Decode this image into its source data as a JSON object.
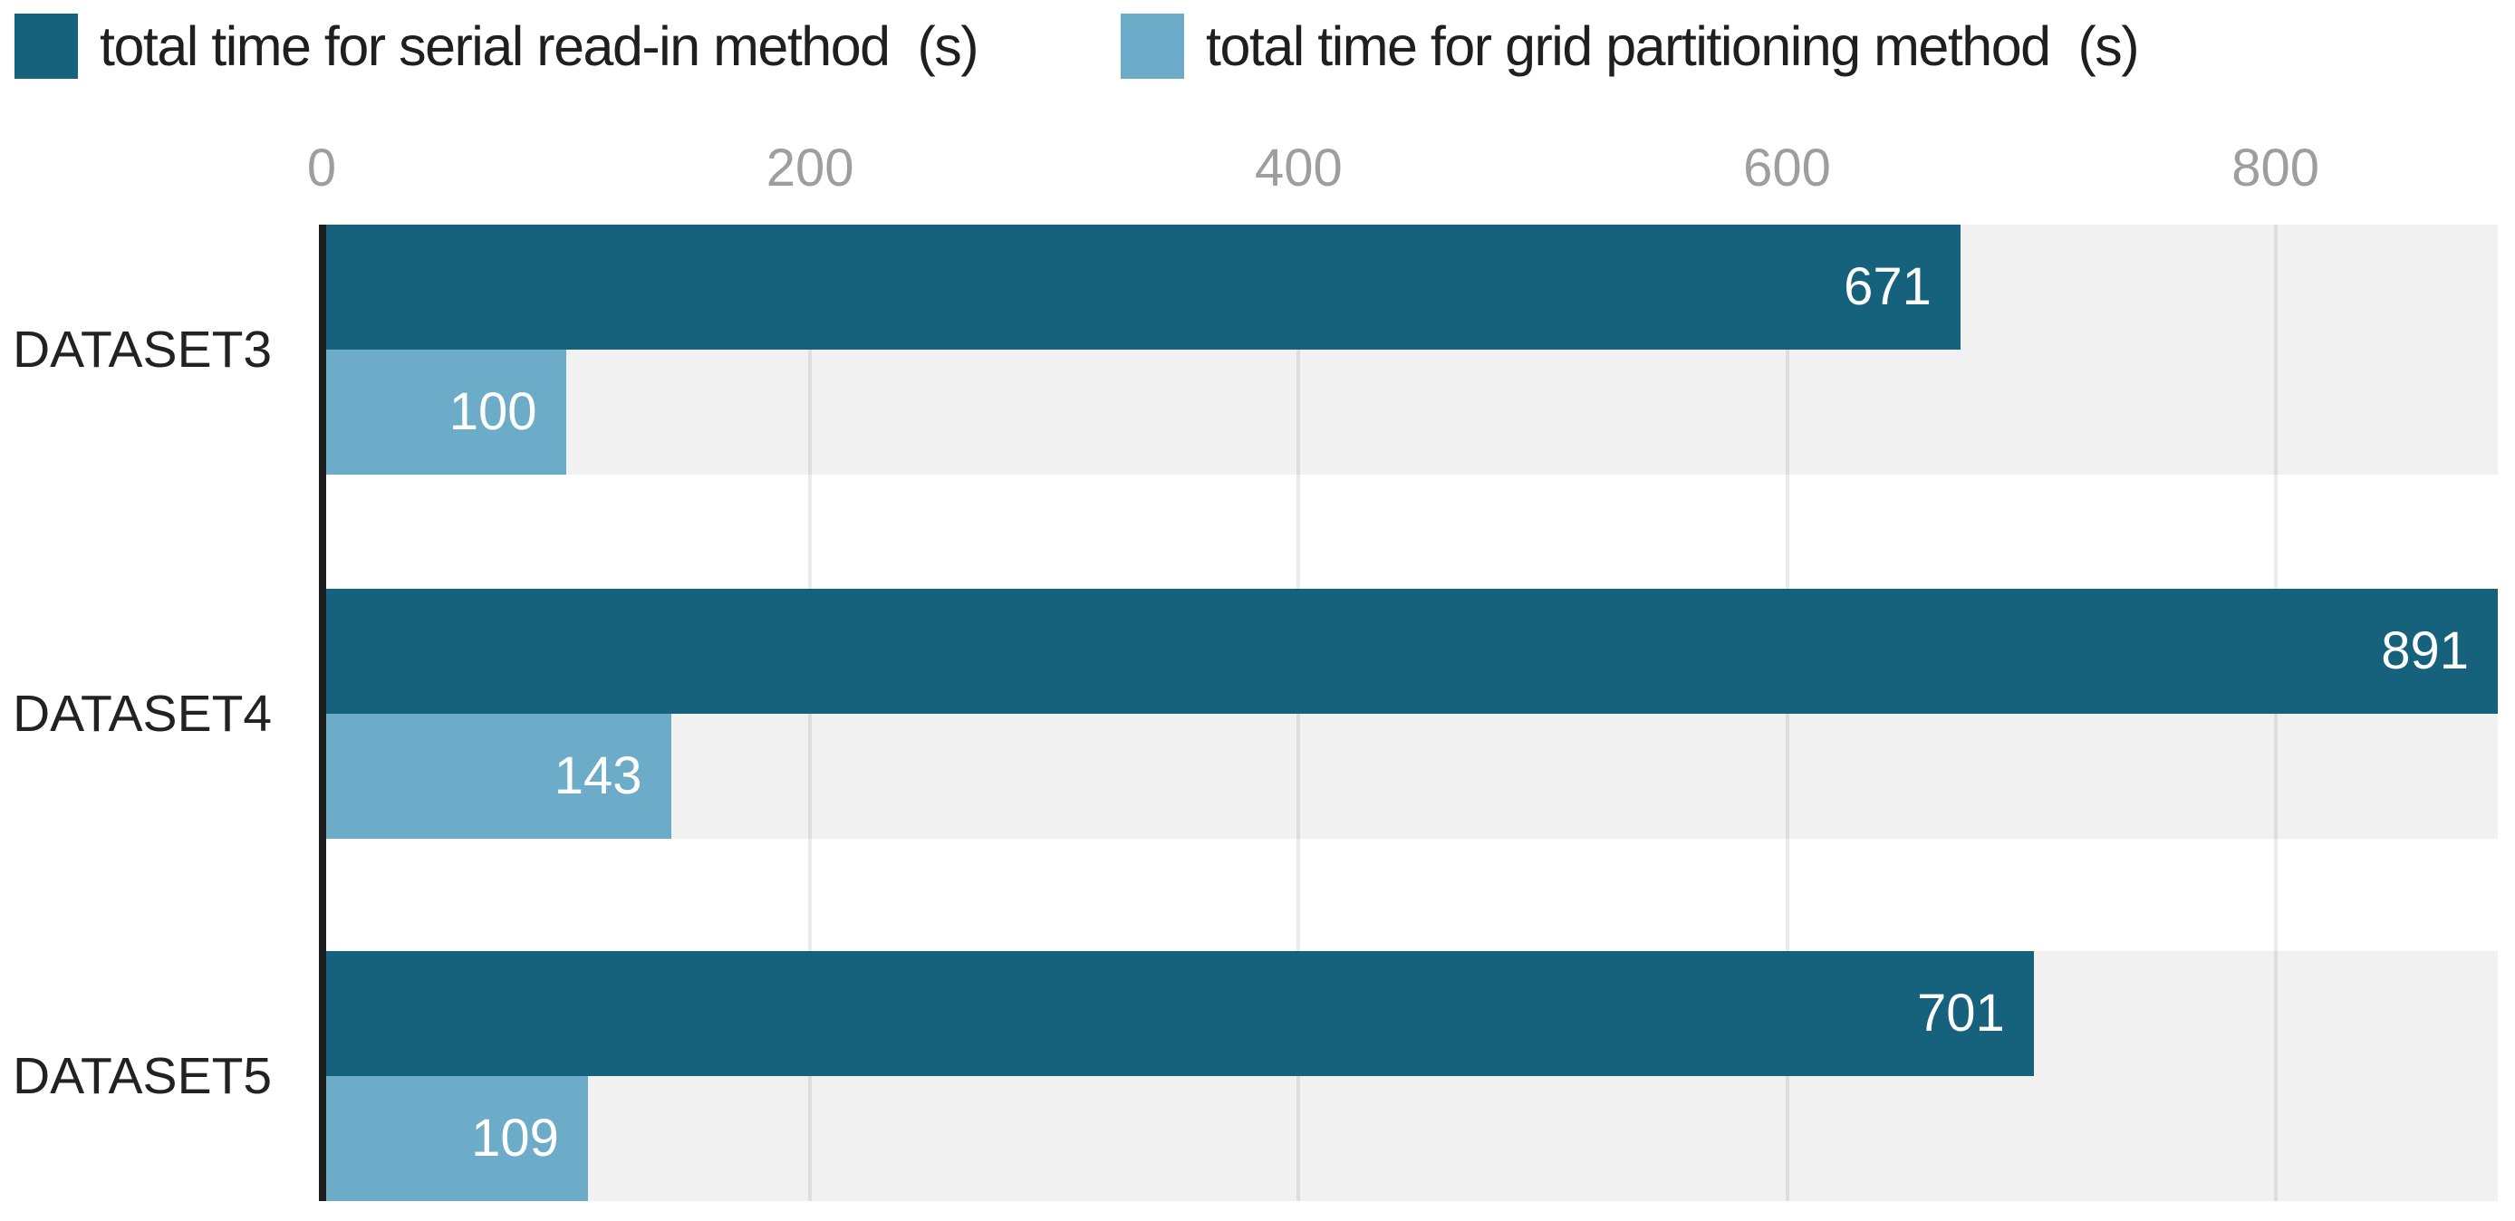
{
  "chart_data": {
    "type": "bar",
    "orientation": "horizontal",
    "title": "",
    "categories": [
      "DATASET3",
      "DATASET4",
      "DATASET5"
    ],
    "series": [
      {
        "name": "total time for serial read-in method  (s)",
        "color": "#16617b",
        "values": [
          671,
          891,
          701
        ]
      },
      {
        "name": "total time for grid partitioning method  (s)",
        "color": "#6dacc8",
        "values": [
          100,
          143,
          109
        ]
      }
    ],
    "xticks": [
      0,
      200,
      400,
      600,
      800
    ],
    "xtick_labels": [
      "0",
      "200",
      "400",
      "600",
      "800"
    ],
    "xlim": [
      0,
      891
    ],
    "xlabel": "",
    "ylabel": "",
    "grid": true,
    "legend_position": "top",
    "value_labels": "inside-end",
    "row_band_color": "#f1f1f1"
  },
  "legend": {
    "items": [
      {
        "label": "total time for serial read-in method  (s)",
        "color": "#16617b"
      },
      {
        "label": "total time for grid partitioning method  (s)",
        "color": "#6dacc8"
      }
    ]
  },
  "axis": {
    "tick_labels": [
      "0",
      "200",
      "400",
      "600",
      "800"
    ]
  },
  "rows": [
    {
      "category": "DATASET3",
      "serial_label": "671",
      "grid_label": "100"
    },
    {
      "category": "DATASET4",
      "serial_label": "891",
      "grid_label": "143"
    },
    {
      "category": "DATASET5",
      "serial_label": "701",
      "grid_label": "109"
    }
  ],
  "colors": {
    "serial_bar": "#16617b",
    "grid_partitioning_bar": "#6dacc8",
    "row_band": "#f1f1f1",
    "axis_line": "#1d1d1d",
    "tick_text": "#9e9e9e",
    "category_text": "#222222",
    "value_text": "#ffffff"
  }
}
